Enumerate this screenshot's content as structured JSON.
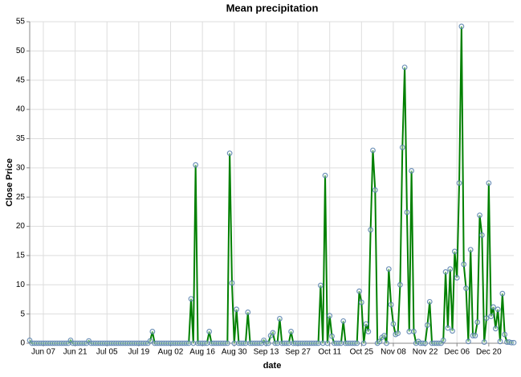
{
  "chart_data": {
    "type": "line",
    "title": "Mean precipitation",
    "x_label": "date",
    "y_label": "Close Price",
    "line_color": "#008000",
    "marker_color": "#4c78a8",
    "grid": true,
    "ylim": [
      0,
      55
    ],
    "yticks": [
      0,
      5,
      10,
      15,
      20,
      25,
      30,
      35,
      40,
      45,
      50,
      55
    ],
    "categories": [
      null,
      null,
      null,
      null,
      null,
      null,
      "Jun 07",
      null,
      null,
      null,
      null,
      null,
      null,
      null,
      null,
      null,
      null,
      null,
      null,
      null,
      "Jun 21",
      null,
      null,
      null,
      null,
      null,
      null,
      null,
      null,
      null,
      null,
      null,
      null,
      null,
      "Jul 05",
      null,
      null,
      null,
      null,
      null,
      null,
      null,
      null,
      null,
      null,
      null,
      null,
      null,
      "Jul 19",
      null,
      null,
      null,
      null,
      null,
      null,
      null,
      null,
      null,
      null,
      null,
      null,
      null,
      "Aug 02",
      null,
      null,
      null,
      null,
      null,
      null,
      null,
      null,
      null,
      null,
      null,
      null,
      null,
      "Aug 16",
      null,
      null,
      null,
      null,
      null,
      null,
      null,
      null,
      null,
      null,
      null,
      null,
      null,
      "Aug 30",
      null,
      null,
      null,
      null,
      null,
      null,
      null,
      null,
      null,
      null,
      null,
      null,
      null,
      "Sep 13",
      null,
      null,
      null,
      null,
      null,
      null,
      null,
      null,
      null,
      null,
      null,
      null,
      null,
      "Sep 27",
      null,
      null,
      null,
      null,
      null,
      null,
      null,
      null,
      null,
      null,
      null,
      null,
      null,
      "Oct 11",
      null,
      null,
      null,
      null,
      null,
      null,
      null,
      null,
      null,
      null,
      null,
      null,
      null,
      "Oct 25",
      null,
      null,
      null,
      null,
      null,
      null,
      null,
      null,
      null,
      null,
      null,
      null,
      null,
      "Nov 08",
      null,
      null,
      null,
      null,
      null,
      null,
      null,
      null,
      null,
      null,
      null,
      null,
      null,
      "Nov 22",
      null,
      null,
      null,
      null,
      null,
      null,
      null,
      null,
      null,
      null,
      null,
      null,
      null,
      "Dec 06",
      null,
      null,
      null,
      null,
      null,
      null,
      null,
      null,
      null,
      null,
      null,
      null,
      null,
      "Dec 20",
      null,
      null,
      null,
      null,
      null,
      null,
      null,
      null,
      null,
      null,
      null
    ],
    "values": [
      0.5,
      0,
      0,
      0,
      0,
      0,
      0,
      0,
      0,
      0,
      0,
      0,
      0,
      0,
      0,
      0,
      0,
      0,
      0.5,
      0,
      0,
      0,
      0,
      0,
      0,
      0,
      0.4,
      0,
      0,
      0,
      0,
      0,
      0,
      0,
      0,
      0,
      0,
      0,
      0,
      0,
      0,
      0,
      0,
      0,
      0,
      0,
      0,
      0,
      0,
      0,
      0,
      0,
      0,
      0.4,
      2.0,
      0,
      0,
      0,
      0,
      0,
      0,
      0,
      0,
      0,
      0,
      0,
      0,
      0,
      0,
      0,
      0,
      7.6,
      0,
      30.5,
      0,
      0,
      0,
      0,
      0,
      2.0,
      0,
      0,
      0,
      0,
      0,
      0,
      0,
      0,
      32.5,
      10.3,
      0,
      5.8,
      0,
      0,
      0,
      0,
      5.3,
      0,
      0,
      0,
      0,
      0,
      0,
      0.5,
      0,
      0,
      1.3,
      1.8,
      0,
      0,
      4.2,
      0,
      0,
      0,
      0,
      2.0,
      0,
      0,
      0,
      0,
      0,
      0,
      0,
      0,
      0,
      0,
      0,
      0,
      9.9,
      0,
      28.7,
      0,
      4.7,
      1.2,
      0,
      0,
      0,
      0,
      3.8,
      0,
      0,
      0,
      0,
      0,
      0,
      8.9,
      7.0,
      0,
      3.3,
      2.0,
      19.4,
      33.0,
      26.2,
      0,
      0.3,
      1.0,
      1.3,
      0,
      12.7,
      6.6,
      3.3,
      1.5,
      1.7,
      10.0,
      33.5,
      47.2,
      22.4,
      2.0,
      29.5,
      2.0,
      0,
      0.3,
      0,
      0,
      0,
      3.1,
      7.1,
      0,
      0,
      0,
      0,
      0,
      0.5,
      12.2,
      2.6,
      12.7,
      2.1,
      15.7,
      11.2,
      27.4,
      54.2,
      13.5,
      9.4,
      0.3,
      16.0,
      1.3,
      1.3,
      3.6,
      21.9,
      18.5,
      0.2,
      4.3,
      27.4,
      4.6,
      6.2,
      2.5,
      5.8,
      0.3,
      8.5,
      1.5,
      0.2,
      0.2,
      0.1,
      0.1
    ]
  }
}
